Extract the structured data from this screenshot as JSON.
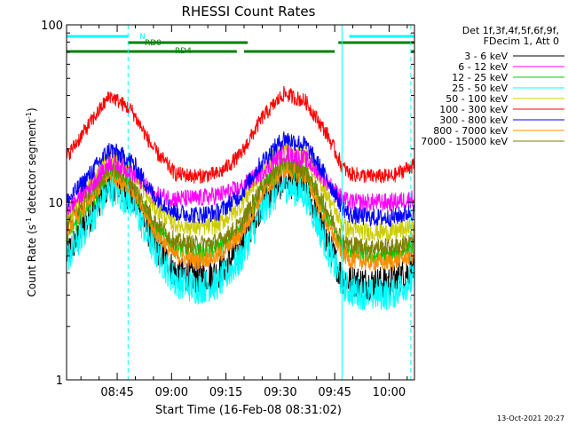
{
  "chart_data": {
    "type": "line",
    "title": "RHESSI Count Rates",
    "xlabel": "Start Time (16-Feb-08 08:31:02)",
    "ylabel_main": "Count Rate (s",
    "ylabel_sup": "-1",
    "ylabel_mid": " detector segment",
    "ylabel_sup2": "-1",
    "ylabel_end": ")",
    "yscale": "log",
    "ylim": [
      1,
      100
    ],
    "xlim": [
      "08:31",
      "10:07"
    ],
    "x_ticks": [
      "08:45",
      "09:00",
      "09:15",
      "09:30",
      "09:45",
      "10:00"
    ],
    "y_ticks": [
      "1",
      "10",
      "100"
    ],
    "grid": false,
    "legend_position": "right",
    "legend_header": [
      "Det 1f,3f,4f,5f,6f,9f,",
      "FDecim 1, Att 0"
    ],
    "series": [
      {
        "name": "3 - 6 keV",
        "color": "#000000",
        "x": [
          "08:31",
          "08:37",
          "08:43",
          "08:49",
          "08:55",
          "09:01",
          "09:07",
          "09:13",
          "09:19",
          "09:25",
          "09:31",
          "09:37",
          "09:43",
          "09:47",
          "09:49",
          "09:55",
          "10:01",
          "10:06"
        ],
        "y": [
          5.0,
          8.0,
          13.0,
          11.0,
          6.0,
          4.0,
          3.8,
          4.0,
          5.5,
          10.0,
          13.5,
          12.0,
          6.0,
          3.8,
          3.6,
          3.5,
          3.6,
          4.2
        ]
      },
      {
        "name": "6 - 12 keV",
        "color": "#ff00ff",
        "x": [
          "08:31",
          "08:37",
          "08:43",
          "08:49",
          "08:55",
          "09:01",
          "09:07",
          "09:13",
          "09:19",
          "09:25",
          "09:31",
          "09:37",
          "09:43",
          "09:47",
          "09:49",
          "09:55",
          "10:01",
          "10:06"
        ],
        "y": [
          9.0,
          12.0,
          17.0,
          15.0,
          11.0,
          10.5,
          10.5,
          11.0,
          12.0,
          15.0,
          19.0,
          17.5,
          13.0,
          10.5,
          10.0,
          10.0,
          10.0,
          10.5
        ]
      },
      {
        "name": "12 - 25 keV",
        "color": "#00cc00",
        "x": [
          "08:31",
          "08:37",
          "08:43",
          "08:49",
          "08:55",
          "09:01",
          "09:07",
          "09:13",
          "09:19",
          "09:25",
          "09:31",
          "09:37",
          "09:43",
          "09:47",
          "09:49",
          "09:55",
          "10:01",
          "10:06"
        ],
        "y": [
          6.5,
          9.5,
          15.0,
          12.5,
          7.5,
          5.5,
          5.2,
          5.5,
          7.0,
          12.0,
          16.0,
          14.5,
          8.0,
          5.5,
          5.2,
          5.0,
          5.0,
          5.5
        ]
      },
      {
        "name": "25 - 50 keV",
        "color": "#00ffff",
        "x": [
          "08:31",
          "08:37",
          "08:43",
          "08:49",
          "08:55",
          "09:01",
          "09:07",
          "09:13",
          "09:19",
          "09:25",
          "09:31",
          "09:37",
          "09:43",
          "09:47",
          "09:49",
          "09:55",
          "10:01",
          "10:06"
        ],
        "y": [
          4.8,
          7.5,
          12.0,
          10.0,
          5.5,
          3.6,
          3.3,
          3.5,
          4.8,
          9.0,
          12.5,
          11.0,
          5.5,
          3.5,
          3.2,
          3.0,
          3.1,
          3.6
        ]
      },
      {
        "name": "50 - 100 keV",
        "color": "#cccc00",
        "x": [
          "08:31",
          "08:37",
          "08:43",
          "08:49",
          "08:55",
          "09:01",
          "09:07",
          "09:13",
          "09:19",
          "09:25",
          "09:31",
          "09:37",
          "09:43",
          "09:47",
          "09:49",
          "09:55",
          "10:01",
          "10:06"
        ],
        "y": [
          8.0,
          12.0,
          19.0,
          15.0,
          9.5,
          7.5,
          7.2,
          7.5,
          9.5,
          15.0,
          21.0,
          18.5,
          11.0,
          7.5,
          7.0,
          6.8,
          6.8,
          7.2
        ]
      },
      {
        "name": "100 - 300 keV",
        "color": "#ff0000",
        "x": [
          "08:31",
          "08:37",
          "08:43",
          "08:49",
          "08:55",
          "09:01",
          "09:07",
          "09:13",
          "09:19",
          "09:25",
          "09:31",
          "09:37",
          "09:43",
          "09:47",
          "09:49",
          "09:55",
          "10:01",
          "10:06"
        ],
        "y": [
          18.0,
          27.0,
          40.0,
          33.0,
          20.0,
          14.5,
          14.0,
          14.5,
          18.5,
          30.0,
          41.0,
          37.0,
          24.0,
          16.0,
          14.5,
          14.0,
          14.0,
          16.0
        ]
      },
      {
        "name": "300 - 800 keV",
        "color": "#0000ff",
        "x": [
          "08:31",
          "08:37",
          "08:43",
          "08:49",
          "08:55",
          "09:01",
          "09:07",
          "09:13",
          "09:19",
          "09:25",
          "09:31",
          "09:37",
          "09:43",
          "09:47",
          "09:49",
          "09:55",
          "10:01",
          "10:06"
        ],
        "y": [
          10.0,
          14.0,
          20.0,
          17.0,
          11.0,
          8.8,
          8.5,
          8.8,
          11.0,
          17.0,
          23.0,
          21.0,
          13.5,
          9.5,
          8.5,
          8.2,
          8.2,
          8.8
        ]
      },
      {
        "name": "800 - 7000 keV",
        "color": "#ff8c00",
        "x": [
          "08:31",
          "08:37",
          "08:43",
          "08:49",
          "08:55",
          "09:01",
          "09:07",
          "09:13",
          "09:19",
          "09:25",
          "09:31",
          "09:37",
          "09:43",
          "09:47",
          "09:49",
          "09:55",
          "10:01",
          "10:06"
        ],
        "y": [
          7.0,
          10.0,
          14.5,
          12.0,
          7.0,
          5.0,
          4.7,
          5.0,
          6.5,
          11.0,
          15.5,
          14.0,
          7.5,
          5.2,
          4.8,
          4.6,
          4.6,
          5.0
        ]
      },
      {
        "name": "7000 - 15000 keV",
        "color": "#808000",
        "x": [
          "08:31",
          "08:37",
          "08:43",
          "08:49",
          "08:55",
          "09:01",
          "09:07",
          "09:13",
          "09:19",
          "09:25",
          "09:31",
          "09:37",
          "09:43",
          "09:47",
          "09:49",
          "09:55",
          "10:01",
          "10:06"
        ],
        "y": [
          7.5,
          11.0,
          16.0,
          13.0,
          8.0,
          6.0,
          5.8,
          6.0,
          7.5,
          12.5,
          17.0,
          15.0,
          9.0,
          6.2,
          5.8,
          5.6,
          5.6,
          6.0
        ]
      }
    ],
    "flag_bars": [
      {
        "label": "N",
        "color": "#00ffff",
        "level": 1,
        "intervals": [
          [
            "08:31",
            "08:48"
          ],
          [
            "09:49",
            "10:07"
          ]
        ]
      },
      {
        "label": "RD0",
        "color": "#008000",
        "level": 2,
        "intervals": [
          [
            "08:48",
            "09:21"
          ],
          [
            "09:46",
            "10:07"
          ]
        ]
      },
      {
        "label": "RD4",
        "color": "#008000",
        "level": 3,
        "intervals": [
          [
            "08:31",
            "09:18"
          ],
          [
            "09:20",
            "09:45"
          ],
          [
            "10:06",
            "10:07"
          ]
        ]
      }
    ],
    "vertical_markers": [
      {
        "time": "08:48",
        "color": "#00ffff",
        "style": "dashed"
      },
      {
        "time": "09:47",
        "color": "#00ffff",
        "style": "solid"
      },
      {
        "time": "10:06",
        "color": "#00ffff",
        "style": "dashed"
      }
    ],
    "corner_date": "13-Oct-2021 20:27"
  }
}
